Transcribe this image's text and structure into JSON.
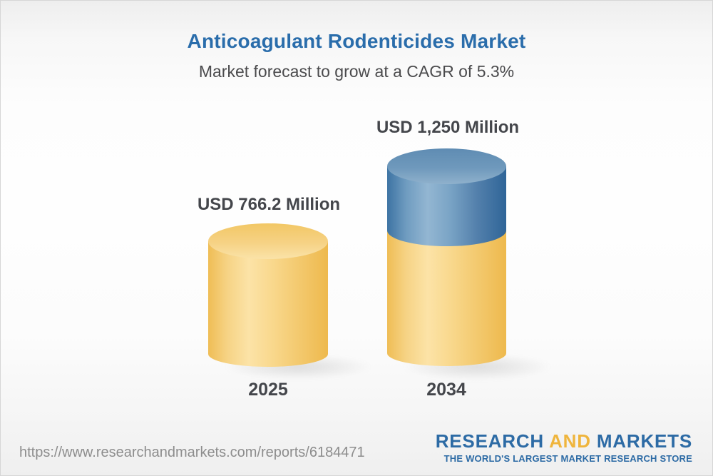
{
  "header": {
    "title": "Anticoagulant Rodenticides Market",
    "subtitle": "Market forecast to grow at a CAGR of 5.3%"
  },
  "chart_data": {
    "type": "bar",
    "title": "Anticoagulant Rodenticides Market",
    "subtitle": "Market forecast to grow at a CAGR of 5.3%",
    "unit": "USD Million",
    "cagr_percent": 5.3,
    "categories": [
      "2025",
      "2034"
    ],
    "values": [
      766.2,
      1250
    ],
    "value_labels": [
      "USD 766.2 Million",
      "USD 1,250 Million"
    ],
    "series": [
      {
        "name": "base-segment",
        "values": [
          766.2,
          766.2
        ],
        "color": "#f5cd74"
      },
      {
        "name": "growth-segment",
        "values": [
          0,
          483.8
        ],
        "color": "#5e8db5"
      }
    ],
    "ylim": [
      0,
      1250
    ],
    "grid": false,
    "legend": false,
    "layout_hints": {
      "bar_style": "3d-cylinder",
      "value_label_position": "above-bar",
      "category_label_position": "below-bar"
    }
  },
  "footer": {
    "url": "https://www.researchandmarkets.com/reports/6184471",
    "logo": {
      "part1": "RESEARCH",
      "part2": "AND",
      "part3": "MARKETS",
      "tagline": "THE WORLD'S LARGEST MARKET RESEARCH STORE"
    }
  },
  "colors": {
    "title_blue": "#2a6dab",
    "subtitle_gray": "#4a4a4c",
    "label_dark": "#44464b",
    "url_gray": "#8d8d8d",
    "logo_blue": "#2d6ba5",
    "logo_gold": "#efb53d",
    "bar_yellow": "#f5cd74",
    "bar_blue": "#5e8db5"
  }
}
